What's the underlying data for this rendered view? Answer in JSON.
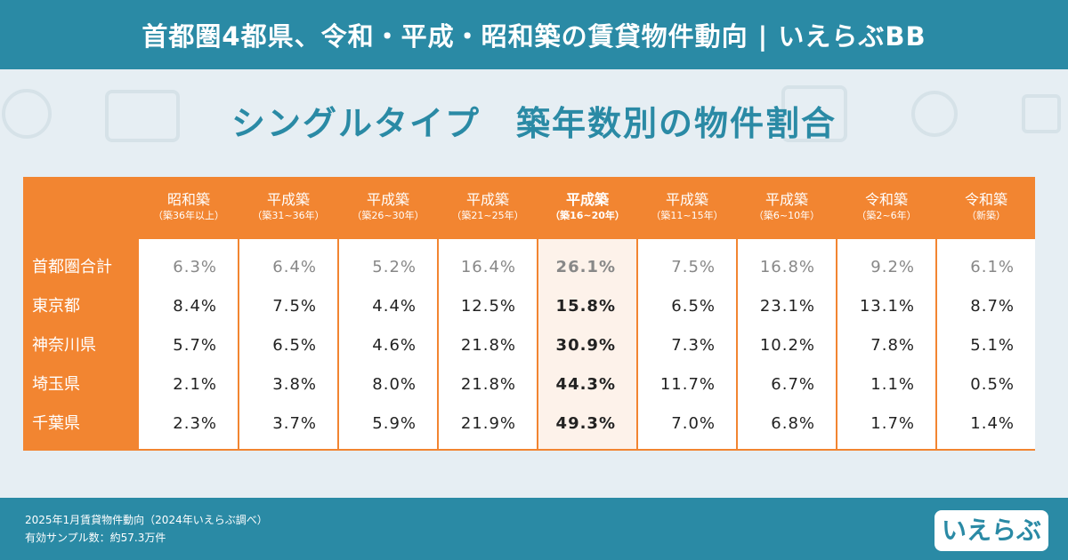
{
  "banner_title": "首都圏4都県、令和・平成・昭和築の賃貸物件動向 | いえらぶBB",
  "heading": "シングルタイプ　築年数別の物件割合",
  "columns": [
    {
      "label": "昭和築",
      "sub": "（築36年以上）"
    },
    {
      "label": "平成築",
      "sub": "（築31~36年）"
    },
    {
      "label": "平成築",
      "sub": "（築26~30年）"
    },
    {
      "label": "平成築",
      "sub": "（築21~25年）"
    },
    {
      "label": "平成築",
      "sub": "（築16~20年）"
    },
    {
      "label": "平成築",
      "sub": "（築11~15年）"
    },
    {
      "label": "平成築",
      "sub": "（築6~10年）"
    },
    {
      "label": "令和築",
      "sub": "（築2~6年）"
    },
    {
      "label": "令和築",
      "sub": "（新築）"
    }
  ],
  "rows": [
    {
      "label": "首都圏合計",
      "values": [
        "6.3%",
        "6.4%",
        "5.2%",
        "16.4%",
        "26.1%",
        "7.5%",
        "16.8%",
        "9.2%",
        "6.1%"
      ]
    },
    {
      "label": "東京都",
      "values": [
        "8.4%",
        "7.5%",
        "4.4%",
        "12.5%",
        "15.8%",
        "6.5%",
        "23.1%",
        "13.1%",
        "8.7%"
      ]
    },
    {
      "label": "神奈川県",
      "values": [
        "5.7%",
        "6.5%",
        "4.6%",
        "21.8%",
        "30.9%",
        "7.3%",
        "10.2%",
        "7.8%",
        "5.1%"
      ]
    },
    {
      "label": "埼玉県",
      "values": [
        "2.1%",
        "3.8%",
        "8.0%",
        "21.8%",
        "44.3%",
        "11.7%",
        "6.7%",
        "1.1%",
        "0.5%"
      ]
    },
    {
      "label": "千葉県",
      "values": [
        "2.3%",
        "3.7%",
        "5.9%",
        "21.9%",
        "49.3%",
        "7.0%",
        "6.8%",
        "1.7%",
        "1.4%"
      ]
    }
  ],
  "highlight_column": 4,
  "footer": {
    "note1": "2025年1月賃貸物件動向（2024年いえらぶ調べ）",
    "note2": "有効サンプル数：約57.3万件",
    "logo": "いえらぶ"
  },
  "colors": {
    "primary": "#2a8aa5",
    "accent": "#f28531",
    "highlight_bg": "#fdf2ea"
  }
}
